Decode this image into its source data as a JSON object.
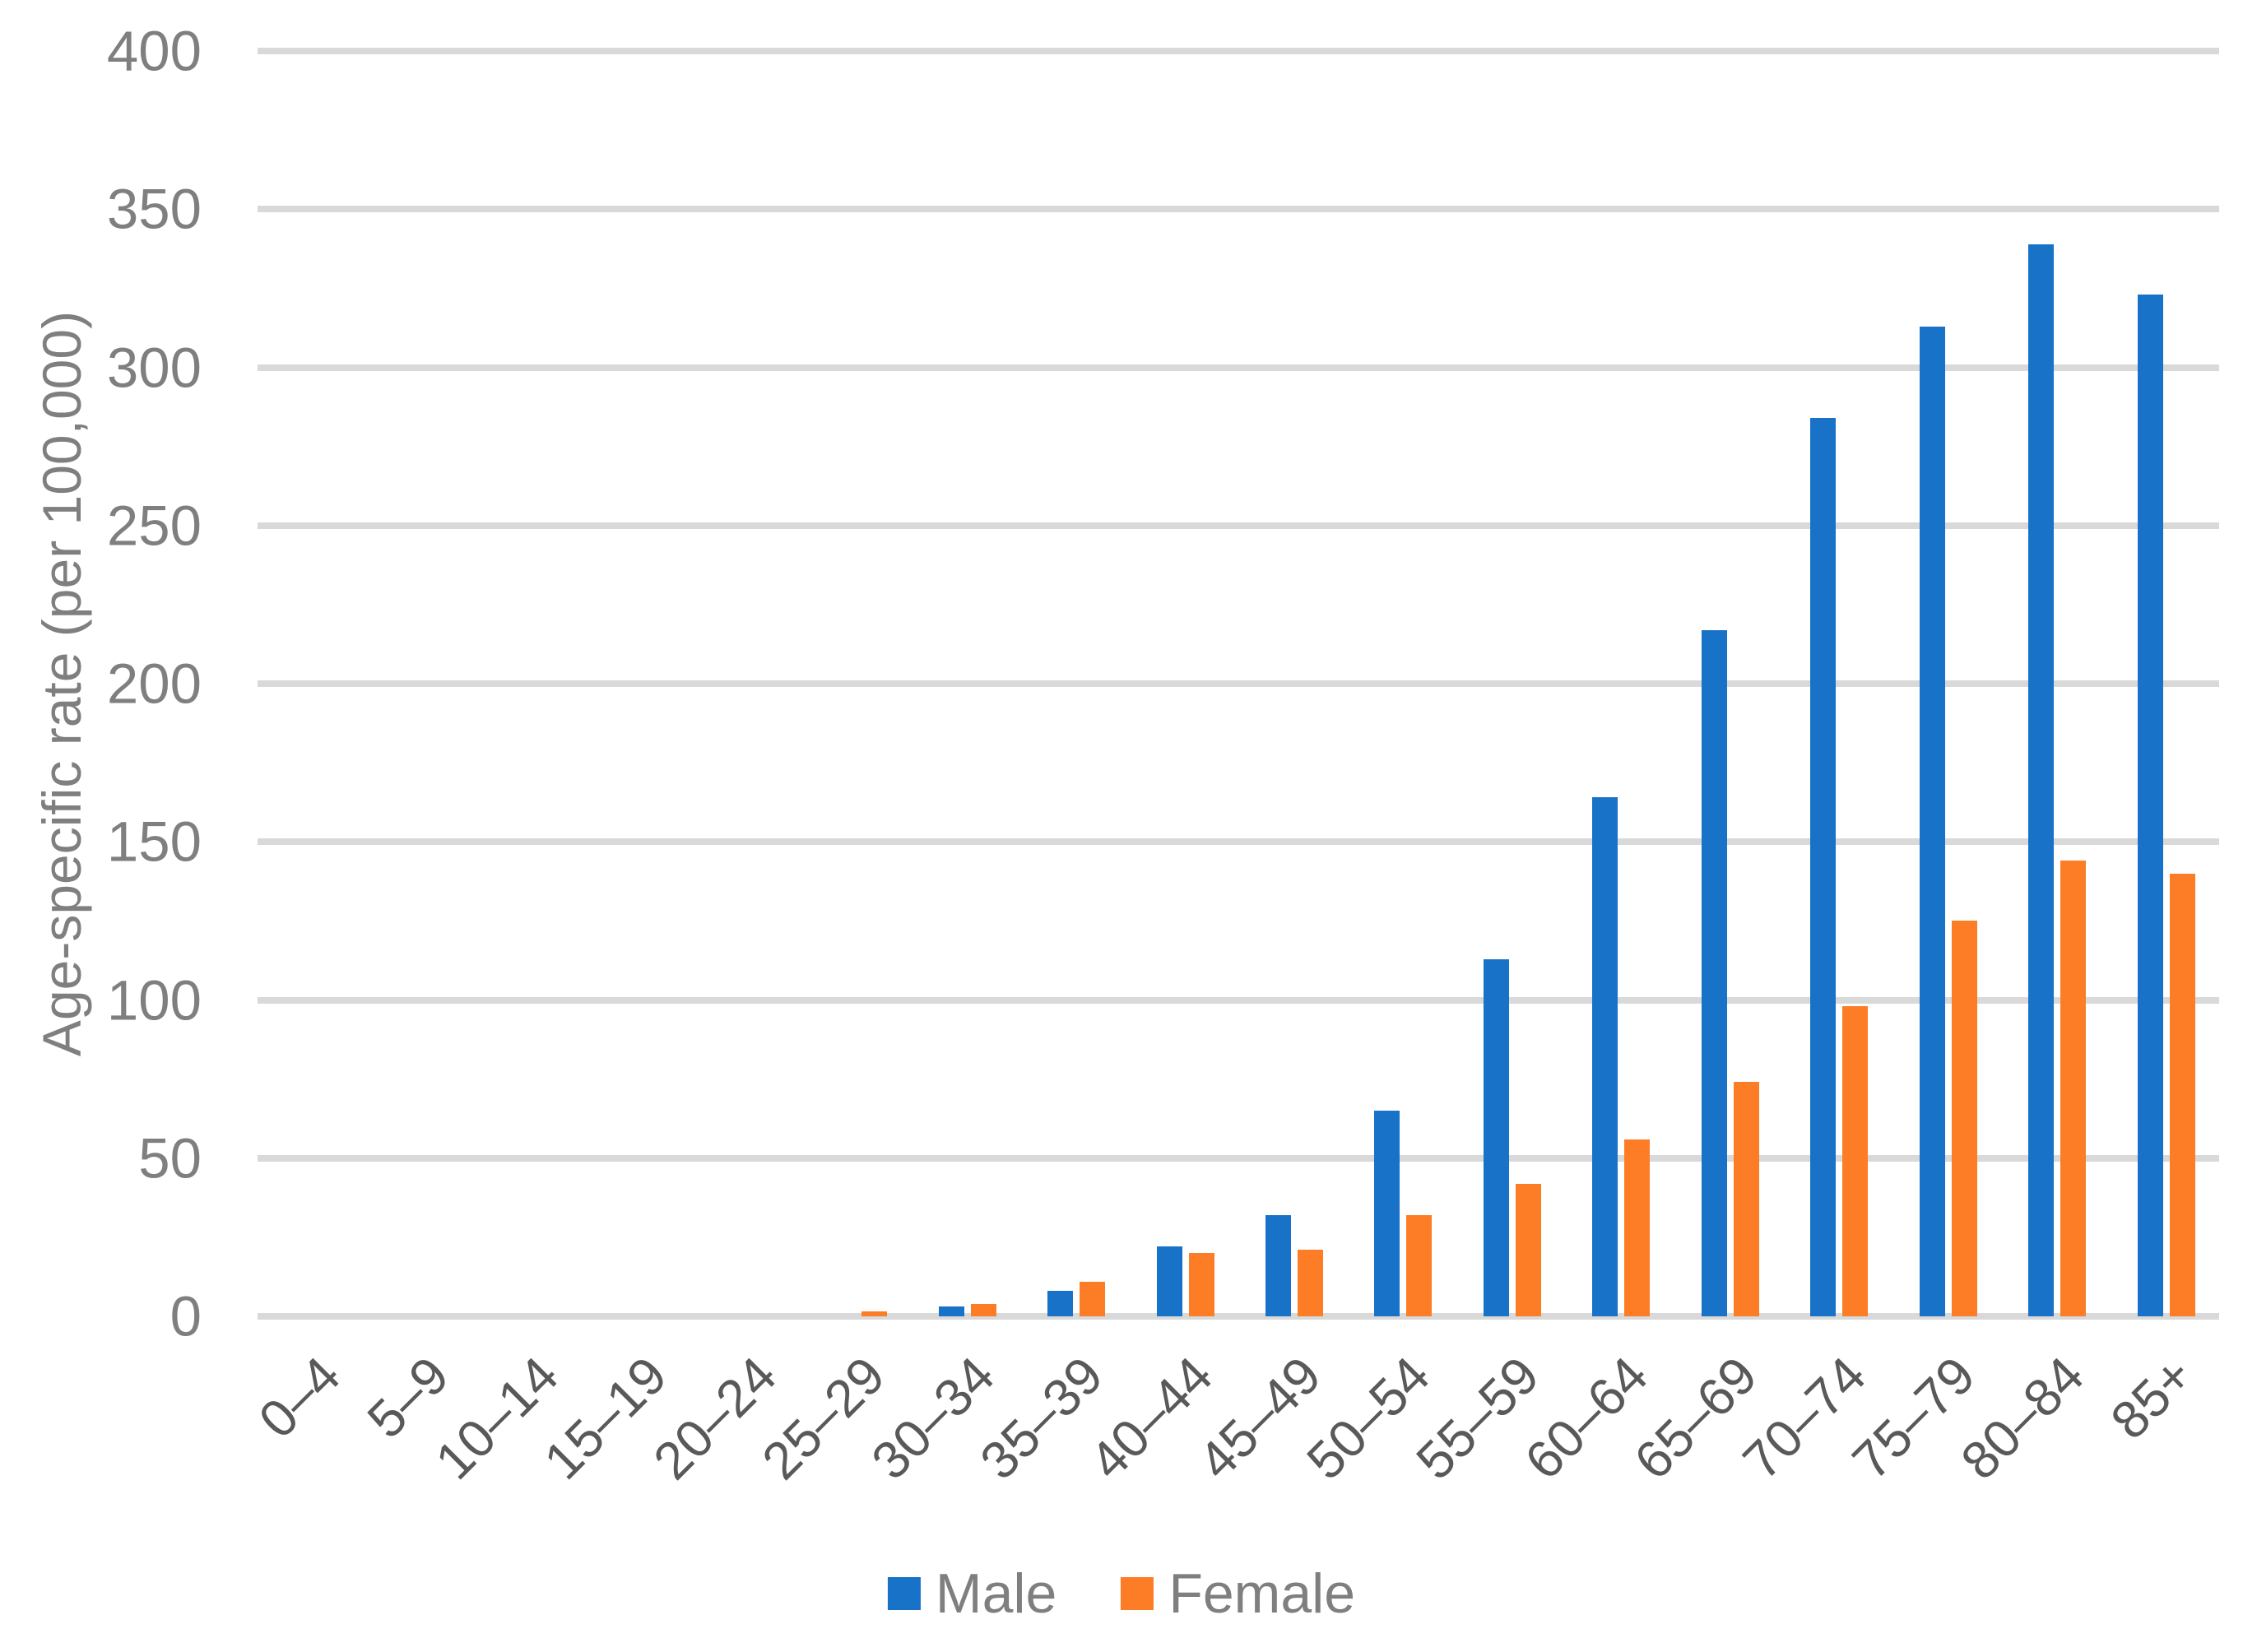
{
  "chart_data": {
    "type": "bar",
    "title": "",
    "categories": [
      "0–4",
      "5–9",
      "10–14",
      "15–19",
      "20–24",
      "25–29",
      "30–34",
      "35–39",
      "40–44",
      "45–49",
      "50–54",
      "55–59",
      "60–64",
      "65–69",
      "70–74",
      "75–79",
      "80–84",
      "85+"
    ],
    "series": [
      {
        "name": "Male",
        "color": "#1772c8",
        "values": [
          0,
          0,
          0,
          0,
          0,
          0,
          3,
          8,
          22,
          32,
          65,
          113,
          164,
          217,
          284,
          313,
          339,
          323
        ]
      },
      {
        "name": "Female",
        "color": "#fc7d26",
        "values": [
          0,
          0,
          0,
          0,
          0,
          1.5,
          4,
          11,
          20,
          21,
          32,
          42,
          56,
          74,
          98,
          125,
          144,
          140
        ]
      }
    ],
    "xlabel": "",
    "ylabel": "Age-specific rate (per 100,000)",
    "ylim": [
      0,
      400
    ],
    "yticks": [
      0,
      50,
      100,
      150,
      200,
      250,
      300,
      350,
      400
    ],
    "grid": "horizontal",
    "gridline_color": "#d9d9d9",
    "ytick_color": "#7f7f7f",
    "xtick_color": "#595959",
    "legend_position": "bottom"
  },
  "legend": {
    "male_label": "Male",
    "female_label": "Female"
  }
}
